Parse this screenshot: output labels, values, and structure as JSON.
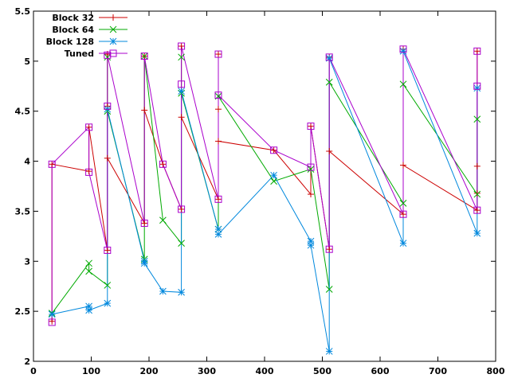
{
  "chart_data": {
    "type": "line",
    "title": "",
    "xlabel": "",
    "ylabel": "",
    "xlim": [
      0,
      800
    ],
    "ylim": [
      2,
      5.5
    ],
    "x_ticks": [
      0,
      100,
      200,
      300,
      400,
      500,
      600,
      700,
      800
    ],
    "y_ticks": [
      2,
      2.5,
      3,
      3.5,
      4,
      4.5,
      5,
      5.5
    ],
    "x_tick_labels": [
      "0",
      "100",
      "200",
      "300",
      "400",
      "500",
      "600",
      "700",
      "800"
    ],
    "y_tick_labels": [
      "2",
      "2.5",
      "3",
      "3.5",
      "4",
      "4.5",
      "5",
      "5.5"
    ],
    "grid": false,
    "legend_position": "top-left",
    "series": [
      {
        "name": "Block 32",
        "color": "#cc0000",
        "marker": "plus",
        "points": [
          [
            32,
            2.4
          ],
          [
            32,
            3.97
          ],
          [
            96,
            3.9
          ],
          [
            96,
            4.34
          ],
          [
            128,
            3.11
          ],
          [
            128,
            4.55
          ],
          [
            128,
            5.07
          ],
          [
            128,
            4.03
          ],
          [
            192,
            3.38
          ],
          [
            192,
            5.05
          ],
          [
            192,
            4.51
          ],
          [
            224,
            3.97
          ],
          [
            256,
            3.52
          ],
          [
            256,
            5.15
          ],
          [
            256,
            4.44
          ],
          [
            320,
            3.62
          ],
          [
            320,
            5.07
          ],
          [
            320,
            4.52
          ],
          [
            320,
            4.2
          ],
          [
            416,
            4.11
          ],
          [
            480,
            3.67
          ],
          [
            480,
            4.35
          ],
          [
            512,
            3.12
          ],
          [
            512,
            5.04
          ],
          [
            512,
            4.1
          ],
          [
            640,
            3.47
          ],
          [
            640,
            5.12
          ],
          [
            640,
            3.96
          ],
          [
            768,
            3.51
          ],
          [
            768,
            5.1
          ],
          [
            768,
            3.95
          ],
          [
            768,
            3.68
          ]
        ]
      },
      {
        "name": "Block 64",
        "color": "#00aa00",
        "marker": "cross",
        "points": [
          [
            32,
            2.48
          ],
          [
            96,
            2.98
          ],
          [
            96,
            2.9
          ],
          [
            128,
            2.76
          ],
          [
            128,
            5.04
          ],
          [
            128,
            4.5
          ],
          [
            192,
            3.02
          ],
          [
            192,
            5.05
          ],
          [
            224,
            3.41
          ],
          [
            256,
            3.18
          ],
          [
            256,
            5.04
          ],
          [
            256,
            4.68
          ],
          [
            320,
            3.32
          ],
          [
            320,
            4.65
          ],
          [
            416,
            3.8
          ],
          [
            480,
            3.92
          ],
          [
            512,
            2.72
          ],
          [
            512,
            4.79
          ],
          [
            640,
            3.58
          ],
          [
            640,
            4.77
          ],
          [
            768,
            3.67
          ],
          [
            768,
            4.42
          ]
        ]
      },
      {
        "name": "Block 128",
        "color": "#0088dd",
        "marker": "star",
        "points": [
          [
            32,
            2.47
          ],
          [
            96,
            2.55
          ],
          [
            96,
            2.51
          ],
          [
            128,
            2.58
          ],
          [
            128,
            4.52
          ],
          [
            192,
            3.0
          ],
          [
            192,
            2.98
          ],
          [
            224,
            2.7
          ],
          [
            256,
            2.69
          ],
          [
            256,
            4.7
          ],
          [
            320,
            3.32
          ],
          [
            320,
            3.27
          ],
          [
            416,
            3.86
          ],
          [
            480,
            3.2
          ],
          [
            480,
            3.16
          ],
          [
            512,
            2.1
          ],
          [
            512,
            5.03
          ],
          [
            640,
            3.18
          ],
          [
            640,
            5.1
          ],
          [
            768,
            3.28
          ],
          [
            768,
            4.73
          ]
        ]
      },
      {
        "name": "Tuned",
        "color": "#aa00cc",
        "marker": "square",
        "points": [
          [
            32,
            2.39
          ],
          [
            32,
            3.97
          ],
          [
            96,
            4.34
          ],
          [
            96,
            3.89
          ],
          [
            128,
            3.11
          ],
          [
            128,
            4.55
          ],
          [
            128,
            5.06
          ],
          [
            192,
            3.38
          ],
          [
            192,
            5.05
          ],
          [
            224,
            3.97
          ],
          [
            256,
            3.52
          ],
          [
            256,
            4.77
          ],
          [
            256,
            5.15
          ],
          [
            320,
            3.62
          ],
          [
            320,
            5.07
          ],
          [
            320,
            4.66
          ],
          [
            416,
            4.11
          ],
          [
            480,
            3.94
          ],
          [
            480,
            4.35
          ],
          [
            512,
            3.12
          ],
          [
            512,
            5.04
          ],
          [
            640,
            3.47
          ],
          [
            640,
            5.12
          ],
          [
            768,
            3.51
          ],
          [
            768,
            5.1
          ],
          [
            768,
            4.75
          ]
        ]
      }
    ]
  }
}
